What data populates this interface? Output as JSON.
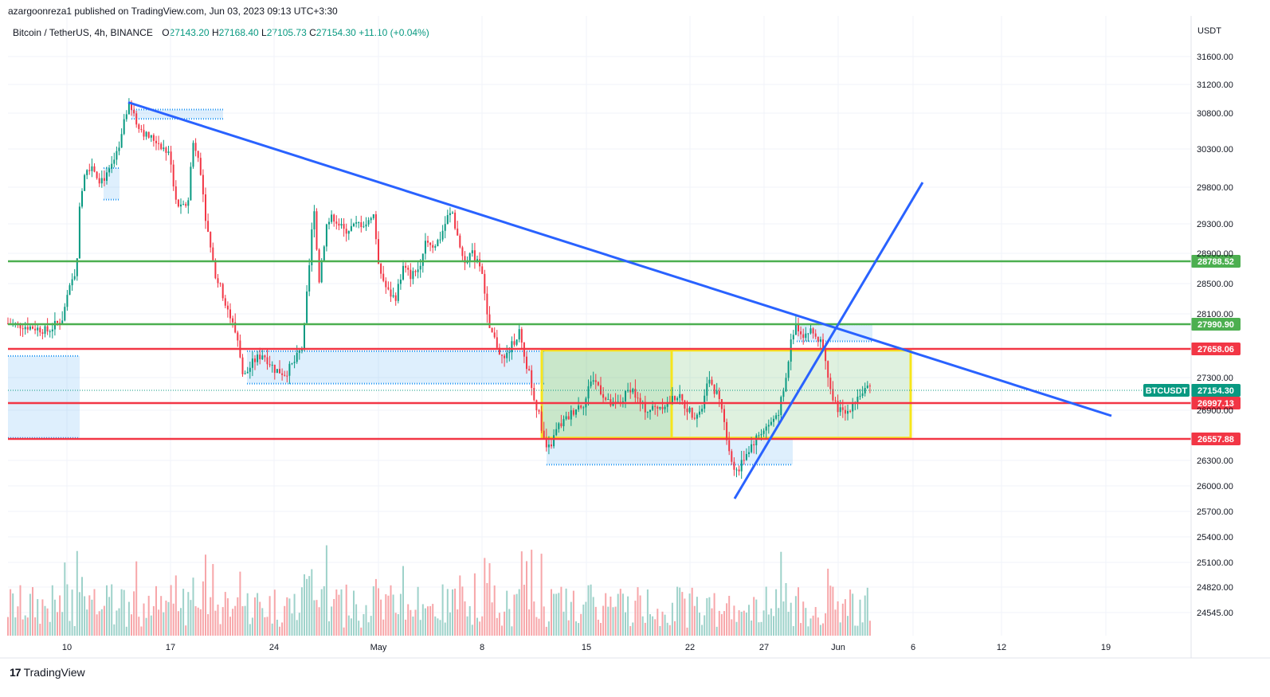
{
  "header": {
    "publisher": "azargoonreza1 published on TradingView.com, Jun 03, 2023 09:13 UTC+3:30"
  },
  "symbol": {
    "name": "Bitcoin / TetherUS, 4h, BINANCE",
    "open_label": "O",
    "open": "27143.20",
    "high_label": "H",
    "high": "27168.40",
    "low_label": "L",
    "low": "27105.73",
    "close_label": "C",
    "close": "27154.30",
    "change": "+11.10 (+0.04%)"
  },
  "currency": "USDT",
  "brand": {
    "logo": "17",
    "name": "TradingView"
  },
  "colors": {
    "up": "#089981",
    "down": "#f23645",
    "trendline": "#2962ff",
    "support": "#f23645",
    "resistance": "#4caf50",
    "zone_border": "#f7e51c",
    "zone_fill": "#a5d6a7"
  },
  "chart_data": {
    "type": "candlestick",
    "timeframe": "4h",
    "ylim": [
      24300,
      32000
    ],
    "y_ticks": [
      "31600.00",
      "31200.00",
      "30800.00",
      "30300.00",
      "29800.00",
      "29300.00",
      "28900.00",
      "28500.00",
      "28100.00",
      "27300.00",
      "26900.00",
      "26300.00",
      "26000.00",
      "25700.00",
      "25400.00",
      "25100.00",
      "24820.00",
      "24545.00"
    ],
    "x_ticks": [
      "10",
      "17",
      "24",
      "May",
      "8",
      "15",
      "22",
      "27",
      "Jun",
      "6",
      "12",
      "19"
    ],
    "horizontal_levels": [
      {
        "price": 28788.52,
        "label": "28788.52",
        "color": "#4caf50"
      },
      {
        "price": 27990.9,
        "label": "27990.90",
        "color": "#4caf50"
      },
      {
        "price": 27658.06,
        "label": "27658.06",
        "color": "#f23645"
      },
      {
        "price": 26997.13,
        "label": "26997.13",
        "color": "#f23645"
      },
      {
        "price": 26557.88,
        "label": "26557.88",
        "color": "#f23645"
      }
    ],
    "last_price": {
      "symbol": "BTCUSDT",
      "price": 27154.3,
      "label": "27154.30"
    },
    "key_prices": [
      30950,
      29900,
      29850,
      28450,
      26850,
      26000
    ]
  }
}
